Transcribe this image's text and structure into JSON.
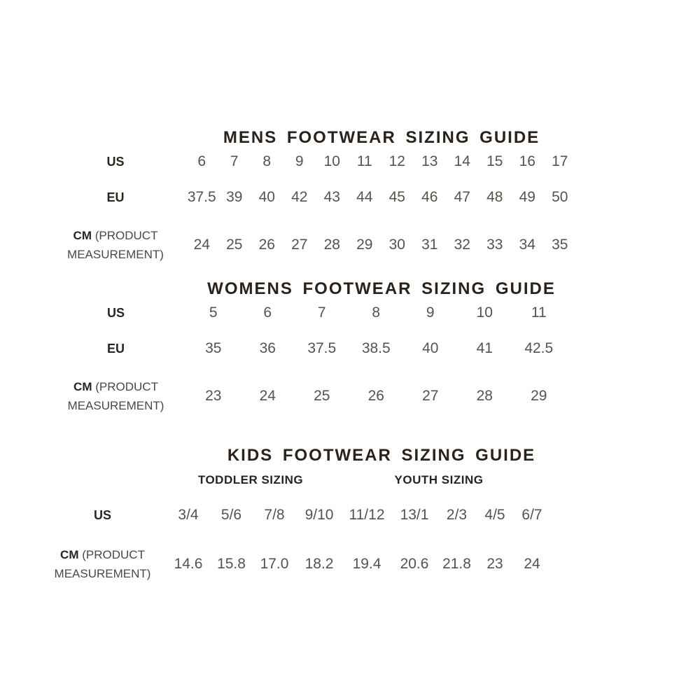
{
  "colors": {
    "background": "#ffffff",
    "heading": "#2a221b",
    "row_label": "#2b2520",
    "value": "#57524b"
  },
  "sections": {
    "mens": {
      "title": "MENS FOOTWEAR SIZING GUIDE",
      "rows": {
        "us": {
          "label": "US",
          "values": [
            "6",
            "7",
            "8",
            "9",
            "10",
            "11",
            "12",
            "13",
            "14",
            "15",
            "16",
            "17"
          ]
        },
        "eu": {
          "label": "EU",
          "values": [
            "37.5",
            "39",
            "40",
            "42",
            "43",
            "44",
            "45",
            "46",
            "47",
            "48",
            "49",
            "50"
          ]
        },
        "cm": {
          "label_unit": "CM",
          "label_note_line1": "(PRODUCT",
          "label_note_line2": "MEASUREMENT)",
          "values": [
            "24",
            "25",
            "26",
            "27",
            "28",
            "29",
            "30",
            "31",
            "32",
            "33",
            "34",
            "35"
          ]
        }
      }
    },
    "womens": {
      "title": "WOMENS FOOTWEAR SIZING GUIDE",
      "rows": {
        "us": {
          "label": "US",
          "values": [
            "5",
            "6",
            "7",
            "8",
            "9",
            "10",
            "11"
          ]
        },
        "eu": {
          "label": "EU",
          "values": [
            "35",
            "36",
            "37.5",
            "38.5",
            "40",
            "41",
            "42.5"
          ]
        },
        "cm": {
          "label_unit": "CM",
          "label_note_line1": "(PRODUCT",
          "label_note_line2": "MEASUREMENT)",
          "values": [
            "23",
            "24",
            "25",
            "26",
            "27",
            "28",
            "29"
          ]
        }
      }
    },
    "kids": {
      "title": "KIDS FOOTWEAR SIZING GUIDE",
      "subheadings": {
        "toddler": "TODDLER SIZING",
        "youth": "YOUTH SIZING"
      },
      "rows": {
        "us": {
          "label": "US",
          "values": [
            "3/4",
            "5/6",
            "7/8",
            "9/10",
            "11/12",
            "13/1",
            "2/3",
            "4/5",
            "6/7"
          ]
        },
        "cm": {
          "label_unit": "CM",
          "label_note_line1": "(PRODUCT",
          "label_note_line2": "MEASUREMENT)",
          "values": [
            "14.6",
            "15.8",
            "17.0",
            "18.2",
            "19.4",
            "20.6",
            "21.8",
            "23",
            "24"
          ]
        }
      }
    }
  }
}
